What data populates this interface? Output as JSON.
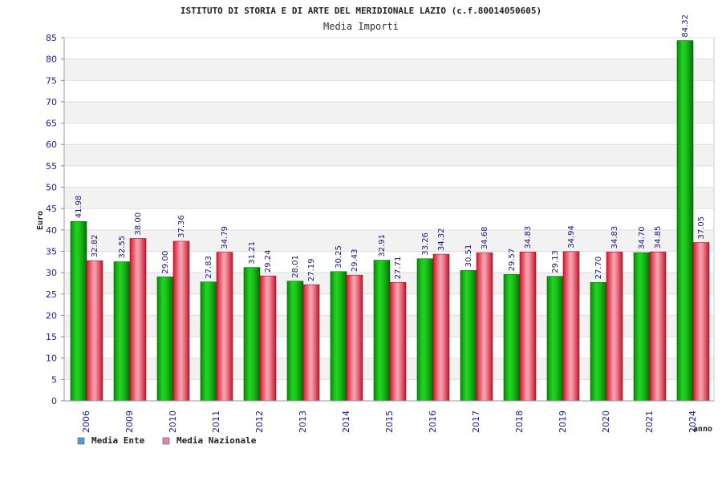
{
  "header": {
    "title": "ISTITUTO DI STORIA E DI ARTE DEL MERIDIONALE LAZIO (c.f.80014050605)",
    "subtitle": "Media Importi"
  },
  "chart_data": {
    "type": "bar",
    "title": "ISTITUTO DI STORIA E DI ARTE DEL MERIDIONALE LAZIO (c.f.80014050605)",
    "subtitle": "Media Importi",
    "xlabel": "anno",
    "ylabel": "Euro",
    "ylim": [
      0,
      85
    ],
    "yticks": [
      0,
      5,
      10,
      15,
      20,
      25,
      30,
      35,
      40,
      45,
      50,
      55,
      60,
      65,
      70,
      75,
      80,
      85
    ],
    "categories": [
      "2006",
      "2009",
      "2010",
      "2011",
      "2012",
      "2013",
      "2014",
      "2015",
      "2016",
      "2017",
      "2018",
      "2019",
      "2020",
      "2021",
      "2024"
    ],
    "series": [
      {
        "name": "Media Ente",
        "color": "#16b816",
        "values": [
          41.98,
          32.55,
          29.0,
          27.83,
          31.21,
          28.01,
          30.25,
          32.91,
          33.26,
          30.51,
          29.57,
          29.13,
          27.7,
          34.7,
          84.32
        ],
        "labels": [
          "41.98",
          "32.55",
          "29.00",
          "27.83",
          "31.21",
          "28.01",
          "30.25",
          "32.91",
          "33.26",
          "30.51",
          "29.57",
          "29.13",
          "27.70",
          "34.70",
          "84.32"
        ]
      },
      {
        "name": "Media Nazionale",
        "color": "#e8334a",
        "values": [
          32.82,
          38.0,
          37.36,
          34.79,
          29.24,
          27.19,
          29.43,
          27.71,
          34.32,
          34.68,
          34.83,
          34.94,
          34.83,
          34.85,
          37.05
        ],
        "labels": [
          "32.82",
          "38.00",
          "37.36",
          "34.79",
          "29.24",
          "27.19",
          "29.43",
          "27.71",
          "34.32",
          "34.68",
          "34.83",
          "34.94",
          "34.83",
          "34.85",
          "37.05"
        ]
      }
    ],
    "grid": true,
    "legend_position": "bottom-left",
    "legend": [
      {
        "label": "Media Ente",
        "swatch": "#5b9bd5"
      },
      {
        "label": "Media Nazionale",
        "swatch": "#d98bb0"
      }
    ]
  }
}
